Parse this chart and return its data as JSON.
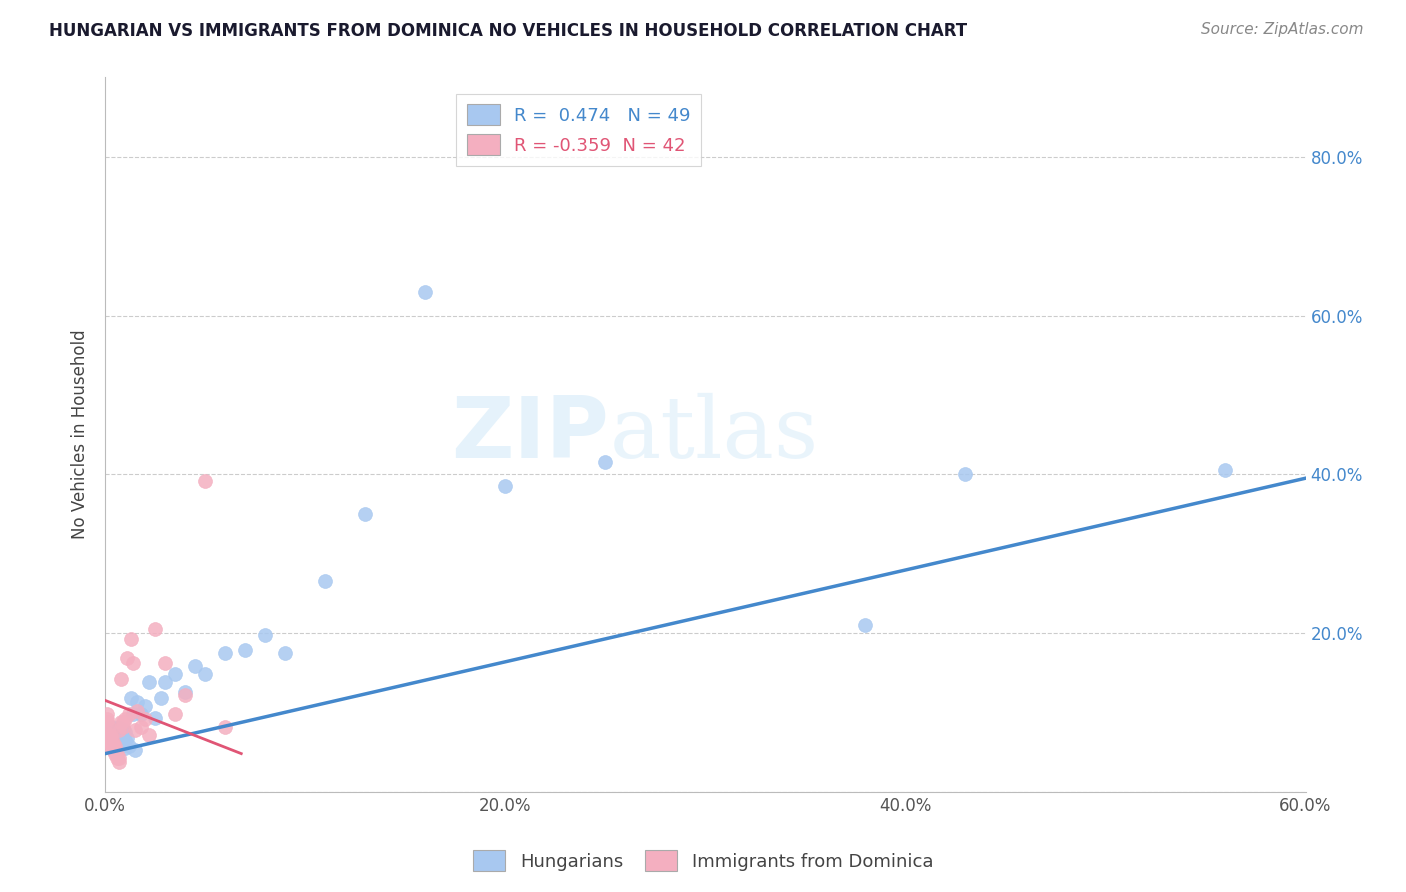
{
  "title": "HUNGARIAN VS IMMIGRANTS FROM DOMINICA NO VEHICLES IN HOUSEHOLD CORRELATION CHART",
  "source": "Source: ZipAtlas.com",
  "ylabel": "No Vehicles in Household",
  "xlim": [
    0.0,
    0.6
  ],
  "ylim": [
    0.0,
    0.9
  ],
  "ytick_values": [
    0.0,
    0.2,
    0.4,
    0.6,
    0.8
  ],
  "xtick_labels": [
    "0.0%",
    "20.0%",
    "40.0%",
    "60.0%"
  ],
  "xtick_values": [
    0.0,
    0.2,
    0.4,
    0.6
  ],
  "right_ytick_labels": [
    "80.0%",
    "60.0%",
    "40.0%",
    "20.0%"
  ],
  "right_ytick_values": [
    0.8,
    0.6,
    0.4,
    0.2
  ],
  "r_hungarian": 0.474,
  "n_hungarian": 49,
  "r_dominica": -0.359,
  "n_dominica": 42,
  "hungarian_color": "#a8c8f0",
  "dominica_color": "#f4afc0",
  "hungarian_line_color": "#4488cc",
  "dominica_line_color": "#e05575",
  "watermark_zip": "ZIP",
  "watermark_atlas": "atlas",
  "hung_line_x": [
    0.0,
    0.6
  ],
  "hung_line_y": [
    0.048,
    0.395
  ],
  "dom_line_x": [
    0.0,
    0.068
  ],
  "dom_line_y": [
    0.115,
    0.048
  ],
  "hungarian_x": [
    0.002,
    0.003,
    0.003,
    0.004,
    0.004,
    0.005,
    0.005,
    0.005,
    0.006,
    0.006,
    0.006,
    0.007,
    0.007,
    0.007,
    0.008,
    0.008,
    0.009,
    0.009,
    0.01,
    0.01,
    0.01,
    0.011,
    0.012,
    0.013,
    0.014,
    0.015,
    0.016,
    0.018,
    0.02,
    0.022,
    0.025,
    0.028,
    0.03,
    0.035,
    0.04,
    0.045,
    0.05,
    0.06,
    0.07,
    0.08,
    0.09,
    0.11,
    0.13,
    0.16,
    0.2,
    0.25,
    0.38,
    0.43,
    0.56
  ],
  "hungarian_y": [
    0.07,
    0.075,
    0.08,
    0.065,
    0.075,
    0.055,
    0.06,
    0.08,
    0.055,
    0.065,
    0.075,
    0.06,
    0.07,
    0.08,
    0.058,
    0.068,
    0.062,
    0.078,
    0.055,
    0.065,
    0.075,
    0.068,
    0.058,
    0.118,
    0.098,
    0.052,
    0.113,
    0.098,
    0.108,
    0.138,
    0.093,
    0.118,
    0.138,
    0.148,
    0.125,
    0.158,
    0.148,
    0.175,
    0.178,
    0.198,
    0.175,
    0.265,
    0.35,
    0.63,
    0.385,
    0.415,
    0.21,
    0.4,
    0.405
  ],
  "dominica_x": [
    0.001,
    0.001,
    0.001,
    0.002,
    0.002,
    0.002,
    0.002,
    0.003,
    0.003,
    0.003,
    0.003,
    0.004,
    0.004,
    0.004,
    0.005,
    0.005,
    0.005,
    0.006,
    0.006,
    0.007,
    0.007,
    0.007,
    0.008,
    0.008,
    0.009,
    0.009,
    0.01,
    0.011,
    0.012,
    0.013,
    0.014,
    0.015,
    0.016,
    0.018,
    0.02,
    0.022,
    0.025,
    0.03,
    0.035,
    0.04,
    0.05,
    0.06
  ],
  "dominica_y": [
    0.088,
    0.092,
    0.098,
    0.062,
    0.068,
    0.072,
    0.082,
    0.055,
    0.062,
    0.068,
    0.072,
    0.052,
    0.058,
    0.062,
    0.048,
    0.052,
    0.058,
    0.042,
    0.048,
    0.038,
    0.042,
    0.078,
    0.088,
    0.142,
    0.082,
    0.088,
    0.092,
    0.168,
    0.098,
    0.192,
    0.162,
    0.078,
    0.102,
    0.082,
    0.092,
    0.072,
    0.205,
    0.162,
    0.098,
    0.122,
    0.392,
    0.082
  ]
}
